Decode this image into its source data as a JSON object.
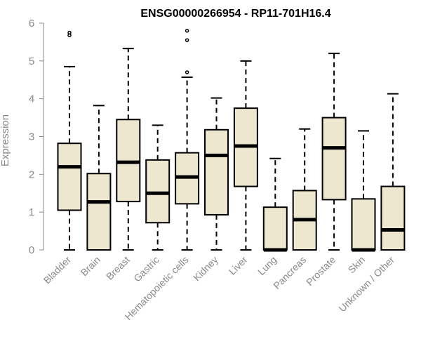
{
  "chart_data": {
    "type": "box",
    "title": "ENSG00000266954 - RP11-701H16.4",
    "xlabel": "",
    "ylabel": "Expression",
    "ylim": [
      0,
      6
    ],
    "yticks": [
      "0",
      "1",
      "2",
      "3",
      "4",
      "5",
      "6"
    ],
    "grid": false,
    "colors": {
      "box_fill": "#EDE7CF",
      "stroke": "#000000",
      "axis_text": "#8A8A8A"
    },
    "categories": [
      "Bladder",
      "Brain",
      "Breast",
      "Gastric",
      "Hematopoietic cells",
      "Kidney",
      "Liver",
      "Lung",
      "Pancreas",
      "Prostate",
      "Skin",
      "Unknown / Other"
    ],
    "boxes": [
      {
        "category": "Bladder",
        "whisker_low": 0,
        "q1": 1.05,
        "median": 2.2,
        "q3": 2.82,
        "whisker_high": 4.85,
        "outliers": [
          5.68,
          5.75
        ]
      },
      {
        "category": "Brain",
        "whisker_low": 0,
        "q1": 0,
        "median": 1.27,
        "q3": 2.02,
        "whisker_high": 3.82,
        "outliers": []
      },
      {
        "category": "Breast",
        "whisker_low": 0,
        "q1": 1.28,
        "median": 2.32,
        "q3": 3.45,
        "whisker_high": 5.33,
        "outliers": []
      },
      {
        "category": "Gastric",
        "whisker_low": 0,
        "q1": 0.72,
        "median": 1.5,
        "q3": 2.38,
        "whisker_high": 3.3,
        "outliers": []
      },
      {
        "category": "Hematopoietic cells",
        "whisker_low": 0,
        "q1": 1.22,
        "median": 1.93,
        "q3": 2.57,
        "whisker_high": 4.57,
        "outliers": [
          4.7,
          5.55,
          5.8
        ]
      },
      {
        "category": "Kidney",
        "whisker_low": 0,
        "q1": 0.93,
        "median": 2.5,
        "q3": 3.18,
        "whisker_high": 4.02,
        "outliers": []
      },
      {
        "category": "Liver",
        "whisker_low": 0,
        "q1": 1.68,
        "median": 2.75,
        "q3": 3.75,
        "whisker_high": 5.0,
        "outliers": []
      },
      {
        "category": "Lung",
        "whisker_low": 0,
        "q1": 0,
        "median": 0,
        "q3": 1.13,
        "whisker_high": 2.42,
        "outliers": []
      },
      {
        "category": "Pancreas",
        "whisker_low": 0,
        "q1": 0,
        "median": 0.8,
        "q3": 1.57,
        "whisker_high": 3.2,
        "outliers": []
      },
      {
        "category": "Prostate",
        "whisker_low": 0,
        "q1": 1.33,
        "median": 2.7,
        "q3": 3.5,
        "whisker_high": 5.2,
        "outliers": []
      },
      {
        "category": "Skin",
        "whisker_low": 0,
        "q1": 0,
        "median": 0,
        "q3": 1.35,
        "whisker_high": 3.15,
        "outliers": []
      },
      {
        "category": "Unknown / Other",
        "whisker_low": 0,
        "q1": 0,
        "median": 0.53,
        "q3": 1.68,
        "whisker_high": 4.13,
        "outliers": []
      }
    ]
  }
}
